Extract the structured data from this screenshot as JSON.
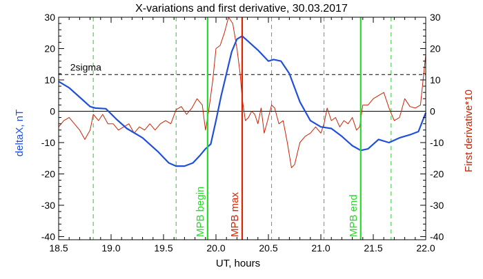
{
  "chart_data": {
    "type": "line",
    "title": "X-variations and first derivative, 30.03.2017",
    "xlabel": "UT, hours",
    "ylabel_left": "deltaX, nT",
    "ylabel_right": "First derivative*10",
    "xlim": [
      18.5,
      22.0
    ],
    "ylim": [
      -41,
      30
    ],
    "x_ticks": [
      18.5,
      19.0,
      19.5,
      20.0,
      20.5,
      21.0,
      21.5,
      22.0
    ],
    "x_tick_labels": [
      "18.5",
      "19.0",
      "19.5",
      "20.0",
      "20.5",
      "21.0",
      "21.5",
      "22.0"
    ],
    "y_ticks": [
      -40,
      -30,
      -20,
      -10,
      0,
      10,
      20,
      30
    ],
    "y_tick_labels": [
      "-40",
      "-30",
      "-20",
      "-10",
      "0",
      "10",
      "20",
      "30"
    ],
    "colors": {
      "deltaX": "#1f4fd8",
      "derivative": "#cc2200",
      "mpb_boundary": "#22dd22",
      "mpb_max": "#dd2200",
      "grid_dash": "#22cc22",
      "axis": "#000000"
    },
    "threshold": {
      "label": "2sigma",
      "value": 11.7
    },
    "zero_line": 0,
    "dashed_verticals": [
      18.83,
      19.62,
      20.53,
      21.03,
      21.67
    ],
    "markers": [
      {
        "label": "MPB begin",
        "x": 19.92,
        "kind": "boundary"
      },
      {
        "label": "MPB max",
        "x": 20.25,
        "kind": "max"
      },
      {
        "label": "MPB end",
        "x": 21.38,
        "kind": "boundary"
      }
    ],
    "series": [
      {
        "name": "deltaX",
        "x": [
          18.5,
          18.6,
          18.7,
          18.8,
          18.85,
          18.95,
          19.05,
          19.15,
          19.3,
          19.45,
          19.55,
          19.62,
          19.7,
          19.78,
          19.85,
          19.9,
          19.95,
          20.0,
          20.05,
          20.1,
          20.15,
          20.2,
          20.25,
          20.3,
          20.4,
          20.5,
          20.55,
          20.62,
          20.7,
          20.8,
          20.9,
          21.0,
          21.1,
          21.2,
          21.3,
          21.38,
          21.45,
          21.55,
          21.65,
          21.75,
          21.85,
          21.93,
          22.0
        ],
        "values": [
          9.5,
          7.5,
          4.5,
          1.5,
          1.0,
          0.8,
          -2.5,
          -5.5,
          -8.5,
          -13.0,
          -16.5,
          -17.5,
          -17.5,
          -16.5,
          -14.0,
          -12.0,
          -10.5,
          -3.0,
          5.0,
          12.0,
          19.0,
          23.0,
          24.0,
          22.5,
          19.5,
          16.0,
          16.5,
          16.0,
          12.0,
          3.0,
          -3.0,
          -5.0,
          -5.5,
          -8.0,
          -11.0,
          -12.5,
          -12.0,
          -9.0,
          -10.0,
          -8.5,
          -7.5,
          -6.5,
          -0.5
        ]
      },
      {
        "name": "First derivative*10",
        "x": [
          18.5,
          18.55,
          18.6,
          18.65,
          18.7,
          18.75,
          18.8,
          18.83,
          18.88,
          18.92,
          18.97,
          19.02,
          19.07,
          19.12,
          19.17,
          19.22,
          19.27,
          19.32,
          19.37,
          19.42,
          19.47,
          19.52,
          19.57,
          19.62,
          19.67,
          19.72,
          19.77,
          19.82,
          19.87,
          19.9,
          19.93,
          19.97,
          20.0,
          20.04,
          20.08,
          20.12,
          20.16,
          20.2,
          20.23,
          20.25,
          20.28,
          20.31,
          20.34,
          20.37,
          20.4,
          20.43,
          20.46,
          20.5,
          20.53,
          20.56,
          20.6,
          20.64,
          20.68,
          20.72,
          20.75,
          20.8,
          20.85,
          20.9,
          20.95,
          21.0,
          21.03,
          21.06,
          21.1,
          21.14,
          21.18,
          21.22,
          21.26,
          21.3,
          21.34,
          21.37,
          21.4,
          21.45,
          21.5,
          21.55,
          21.6,
          21.65,
          21.7,
          21.75,
          21.8,
          21.85,
          21.9,
          21.95,
          22.0
        ],
        "values": [
          -5.0,
          -3.0,
          -2.0,
          -4.0,
          -6.0,
          -9.0,
          -6.0,
          -1.0,
          -3.0,
          -1.0,
          -4.0,
          -4.0,
          -6.0,
          -5.0,
          -4.0,
          -7.0,
          -5.0,
          -6.0,
          -4.0,
          -6.0,
          -4.0,
          -3.0,
          -4.0,
          0.5,
          1.5,
          -1.0,
          1.0,
          4.0,
          2.0,
          -6.0,
          0.0,
          10.0,
          20.0,
          21.0,
          25.0,
          30.0,
          28.0,
          20.0,
          12.0,
          4.0,
          -3.0,
          -2.0,
          0.0,
          -1.0,
          -4.0,
          1.0,
          -7.0,
          -2.0,
          2.0,
          1.0,
          -4.0,
          -3.0,
          -10.0,
          -18.0,
          -17.0,
          -10.0,
          -8.0,
          -7.0,
          -5.0,
          -7.0,
          -4.0,
          1.0,
          -3.0,
          -2.0,
          -5.0,
          -3.0,
          -4.0,
          -2.0,
          -6.0,
          -5.0,
          2.0,
          2.0,
          4.0,
          5.0,
          6.0,
          1.0,
          -3.0,
          -2.0,
          4.0,
          1.5,
          1.0,
          2.0,
          18.0
        ]
      }
    ]
  }
}
